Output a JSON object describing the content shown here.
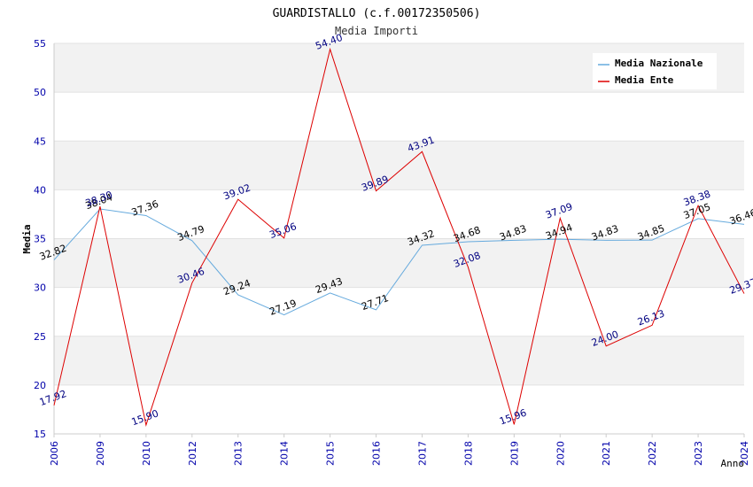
{
  "chart_data": {
    "type": "line",
    "title": "GUARDISTALLO (c.f.00172350506)",
    "subtitle": "Media Importi",
    "xlabel": "Anno",
    "ylabel": "Media",
    "ylim": [
      15,
      55
    ],
    "yticks": [
      15,
      20,
      25,
      30,
      35,
      40,
      45,
      50,
      55
    ],
    "categories": [
      "2006",
      "2009",
      "2010",
      "2012",
      "2013",
      "2014",
      "2015",
      "2016",
      "2017",
      "2018",
      "2019",
      "2020",
      "2021",
      "2022",
      "2023",
      "2024"
    ],
    "series": [
      {
        "name": "Media Nazionale",
        "color": "#66aadd",
        "values": [
          32.82,
          38.04,
          37.36,
          34.79,
          29.24,
          27.19,
          29.43,
          27.71,
          34.32,
          34.68,
          34.83,
          34.94,
          34.83,
          34.85,
          37.05,
          36.46
        ],
        "labels": [
          "32.82",
          "38.04",
          "37.36",
          "34.79",
          "29.24",
          "27.19",
          "29.43",
          "27.71",
          "34.32",
          "34.68",
          "34.83",
          "34.94",
          "34.83",
          "34.85",
          "37.05",
          "36.46"
        ]
      },
      {
        "name": "Media Ente",
        "color": "#dd0000",
        "values": [
          17.92,
          38.3,
          15.9,
          30.46,
          39.02,
          35.06,
          54.4,
          39.89,
          43.91,
          32.08,
          15.96,
          37.09,
          24.0,
          26.13,
          38.38,
          29.37
        ],
        "labels": [
          "17.92",
          "38.30",
          "15.90",
          "30.46",
          "39.02",
          "35.06",
          "54.40",
          "39.89",
          "43.91",
          "32.08",
          "15.96",
          "37.09",
          "24.00",
          "26.13",
          "38.38",
          "29.37"
        ]
      }
    ],
    "grid": true,
    "legend_position": "top-right"
  }
}
